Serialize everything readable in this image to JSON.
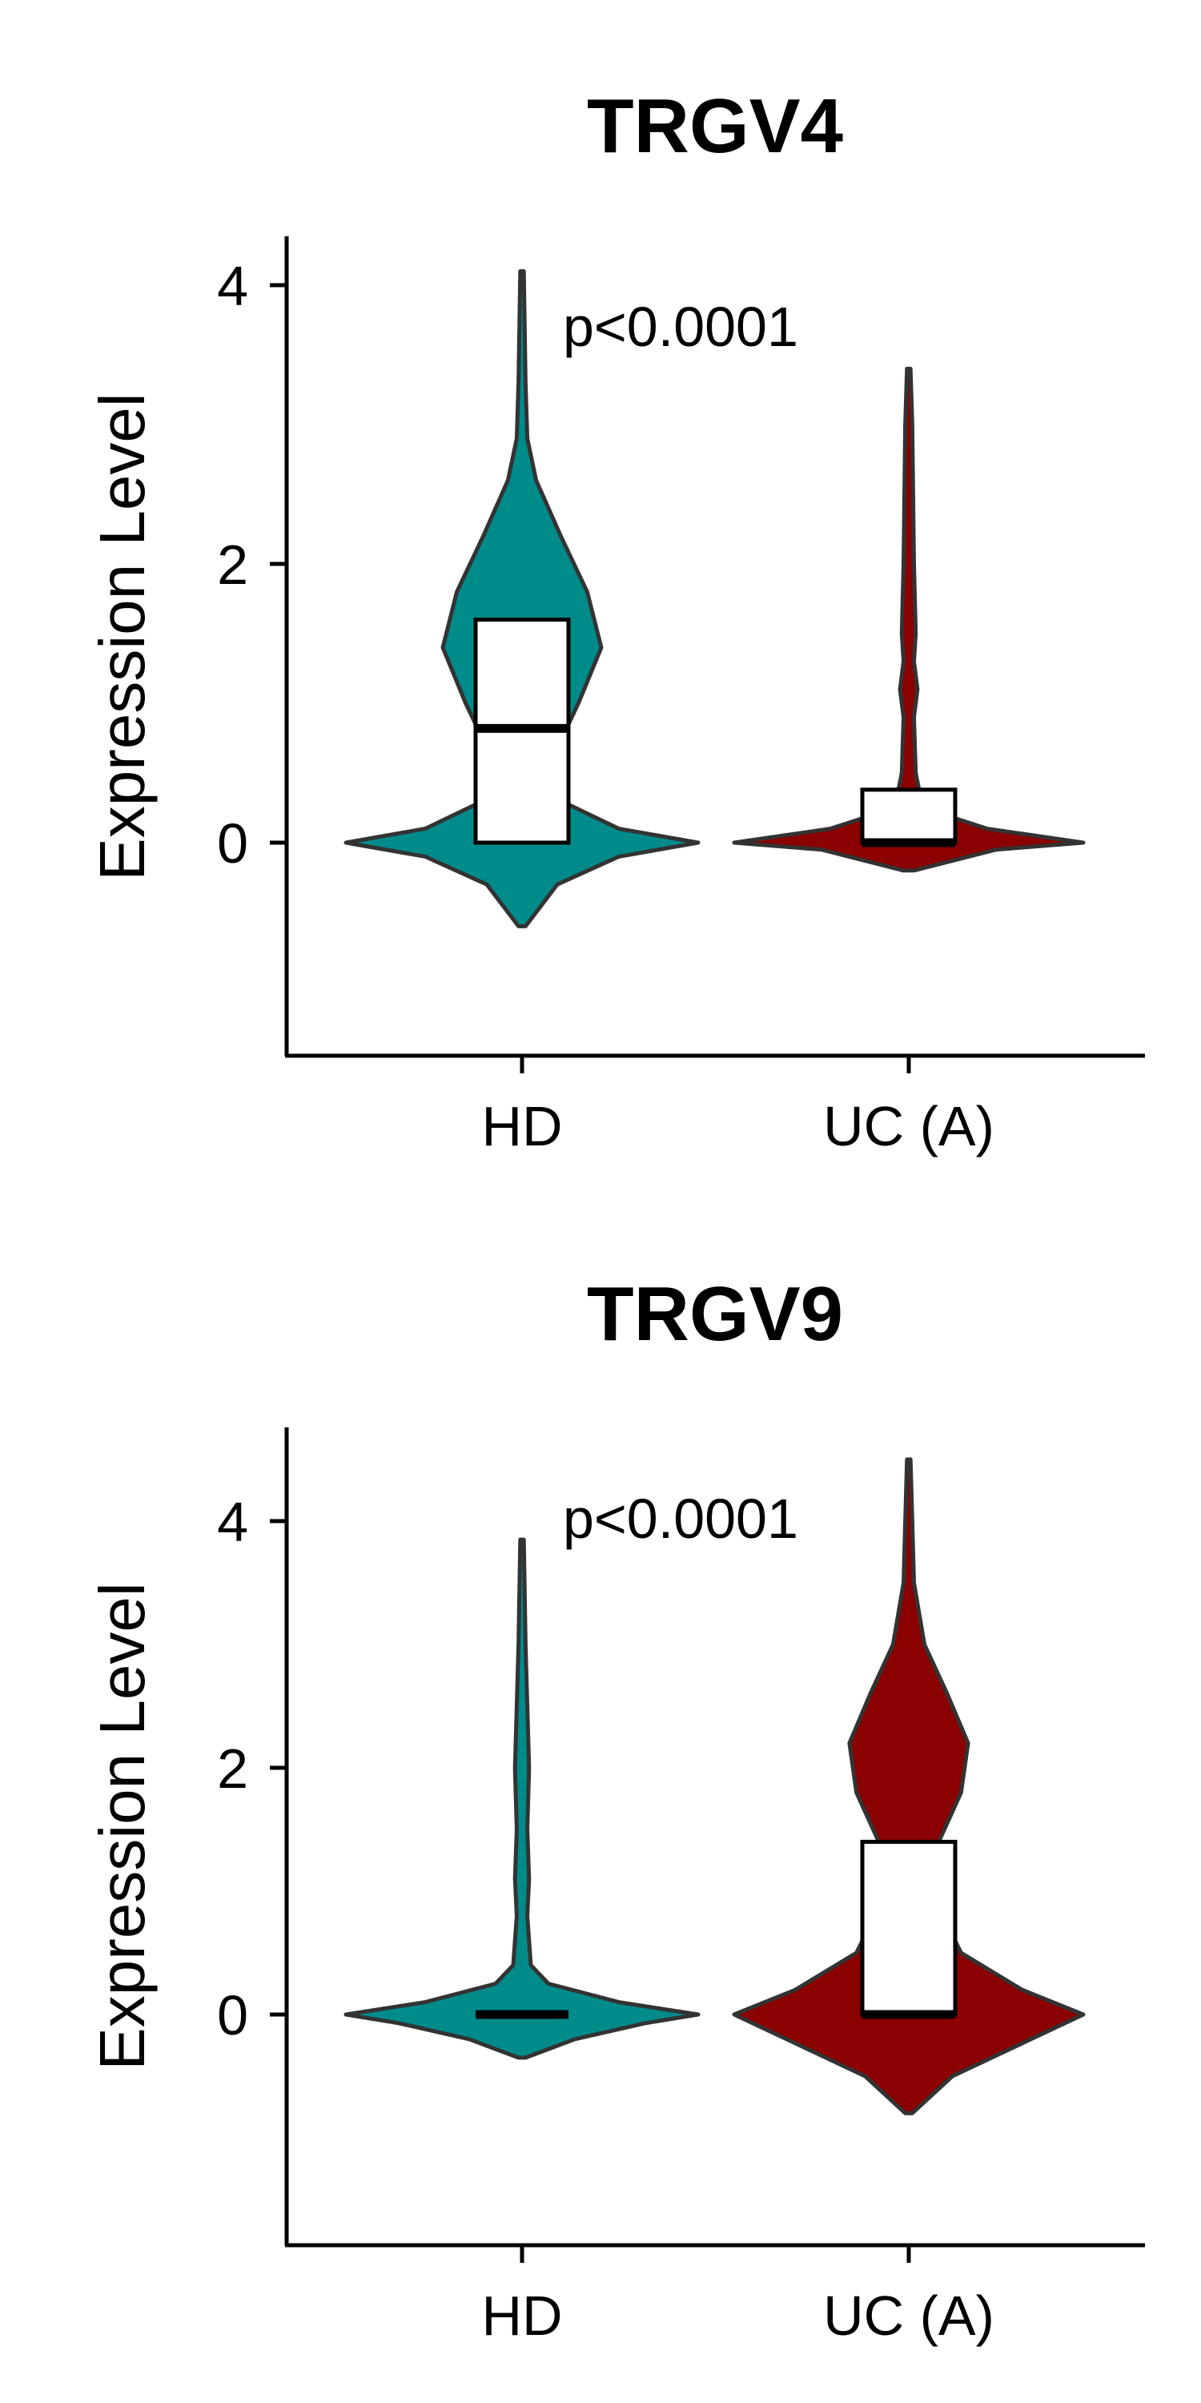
{
  "chart_data": [
    {
      "type": "violin",
      "title": "TRGV4",
      "ylabel": "Expression Level",
      "xlabel": "",
      "categories": [
        "HD",
        "UC (A)"
      ],
      "yticks": [
        "4",
        "2",
        "0"
      ],
      "ylim": [
        -1.5,
        4.3
      ],
      "annotation": "p<0.0001",
      "grid": false,
      "legend": "none",
      "series": [
        {
          "category": "HD",
          "color": "#008B8B",
          "violin_range": [
            -0.6,
            4.1
          ],
          "density": [
            [
              -0.6,
              0.02
            ],
            [
              -0.3,
              0.2
            ],
            [
              -0.1,
              0.55
            ],
            [
              0.0,
              1.0
            ],
            [
              0.1,
              0.55
            ],
            [
              0.3,
              0.22
            ],
            [
              0.6,
              0.17
            ],
            [
              1.0,
              0.32
            ],
            [
              1.4,
              0.45
            ],
            [
              1.8,
              0.37
            ],
            [
              2.2,
              0.22
            ],
            [
              2.6,
              0.08
            ],
            [
              2.9,
              0.03
            ],
            [
              3.3,
              0.02
            ],
            [
              4.1,
              0.01
            ]
          ],
          "box": {
            "q1": 0.0,
            "median": 0.82,
            "q3": 1.6
          }
        },
        {
          "category": "UC (A)",
          "color": "#8B0000",
          "violin_range": [
            -0.2,
            3.4
          ],
          "density": [
            [
              -0.2,
              0.03
            ],
            [
              -0.05,
              0.5
            ],
            [
              0.0,
              1.0
            ],
            [
              0.1,
              0.45
            ],
            [
              0.25,
              0.08
            ],
            [
              0.5,
              0.04
            ],
            [
              0.9,
              0.03
            ],
            [
              1.1,
              0.05
            ],
            [
              1.3,
              0.03
            ],
            [
              1.5,
              0.04
            ],
            [
              2.0,
              0.03
            ],
            [
              3.0,
              0.02
            ],
            [
              3.4,
              0.01
            ]
          ],
          "box": {
            "q1": 0.0,
            "median": 0.0,
            "q3": 0.38
          }
        }
      ]
    },
    {
      "type": "violin",
      "title": "TRGV9",
      "ylabel": "Expression Level",
      "xlabel": "",
      "categories": [
        "HD",
        "UC (A)"
      ],
      "yticks": [
        "4",
        "2",
        "0"
      ],
      "ylim": [
        -1.8,
        4.8
      ],
      "annotation": "p<0.0001",
      "grid": false,
      "legend": "none",
      "series": [
        {
          "category": "HD",
          "color": "#008B8B",
          "violin_range": [
            -0.35,
            3.85
          ],
          "density": [
            [
              -0.35,
              0.02
            ],
            [
              -0.2,
              0.3
            ],
            [
              -0.07,
              0.7
            ],
            [
              0.0,
              1.0
            ],
            [
              0.1,
              0.55
            ],
            [
              0.25,
              0.15
            ],
            [
              0.4,
              0.05
            ],
            [
              0.8,
              0.03
            ],
            [
              1.1,
              0.04
            ],
            [
              1.5,
              0.03
            ],
            [
              2.0,
              0.04
            ],
            [
              2.5,
              0.03
            ],
            [
              3.0,
              0.02
            ],
            [
              3.85,
              0.01
            ]
          ],
          "box": {
            "q1": 0.0,
            "median": 0.0,
            "q3": 0.0
          }
        },
        {
          "category": "UC (A)",
          "color": "#8B0000",
          "violin_range": [
            -0.8,
            4.5
          ],
          "density": [
            [
              -0.8,
              0.02
            ],
            [
              -0.5,
              0.25
            ],
            [
              -0.2,
              0.7
            ],
            [
              0.0,
              1.0
            ],
            [
              0.2,
              0.65
            ],
            [
              0.5,
              0.3
            ],
            [
              0.9,
              0.16
            ],
            [
              1.3,
              0.14
            ],
            [
              1.8,
              0.3
            ],
            [
              2.2,
              0.34
            ],
            [
              2.6,
              0.22
            ],
            [
              3.0,
              0.09
            ],
            [
              3.5,
              0.03
            ],
            [
              4.0,
              0.02
            ],
            [
              4.5,
              0.01
            ]
          ],
          "box": {
            "q1": 0.0,
            "median": 0.0,
            "q3": 1.4
          }
        }
      ]
    }
  ]
}
